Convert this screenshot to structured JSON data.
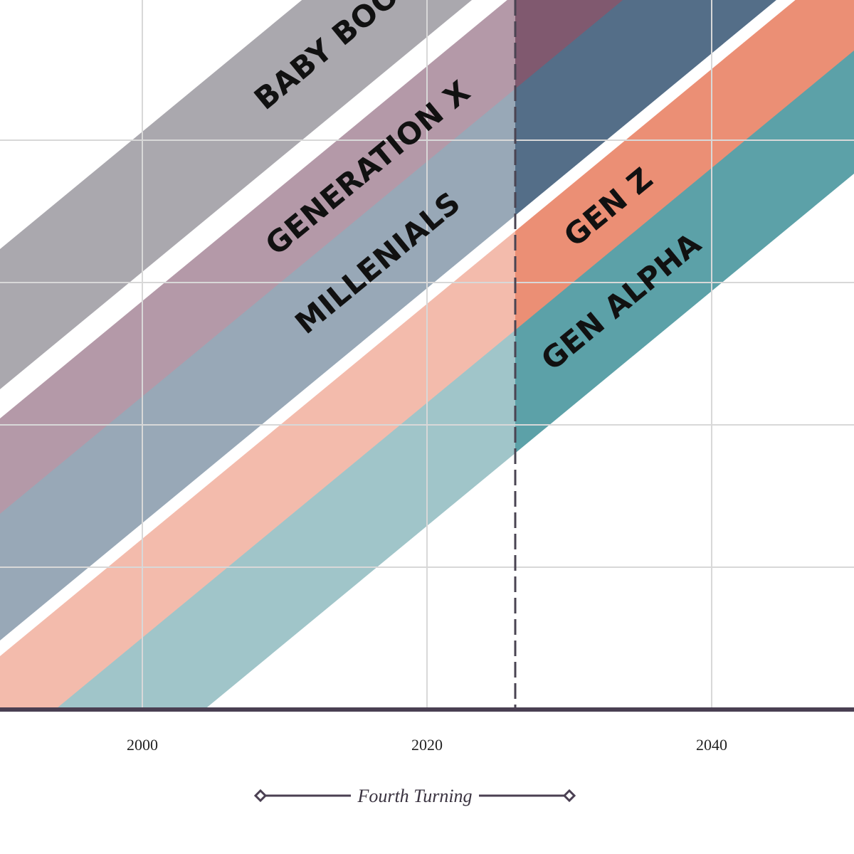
{
  "chart_data": {
    "type": "area",
    "title": "",
    "xlabel": "",
    "ylabel": "",
    "xlim": [
      1990,
      2050
    ],
    "ylim": [
      0,
      100
    ],
    "x_ticks": [
      2000,
      2020,
      2040
    ],
    "x_tick_labels": [
      "2000",
      "2020",
      "2040"
    ],
    "y_grid": [
      20,
      40,
      60,
      80
    ],
    "grid": true,
    "slope_per_year": 1.65,
    "divider_year": 2026.2,
    "series": [
      {
        "name": "BABY BOOMERS",
        "y_at_1990": 45.0,
        "thickness": 19.7,
        "fill_past": "#aaa8ae",
        "fill_future": "#6f6b78"
      },
      {
        "name": "GENERATION X",
        "y_at_1990": 25.3,
        "thickness": 15.6,
        "fill_past": "#b499a8",
        "fill_future": "#80596f"
      },
      {
        "name": "MILLENIALS",
        "y_at_1990": 9.7,
        "thickness": 17.8,
        "fill_past": "#98a8b7",
        "fill_future": "#546e88"
      },
      {
        "name": "GEN Z",
        "y_at_1990": -8.1,
        "thickness": 15.6,
        "fill_past": "#f3bbac",
        "fill_future": "#eb8f75"
      },
      {
        "name": "GEN ALPHA",
        "y_at_1990": -23.7,
        "thickness": 17.3,
        "fill_past": "#a0c5c9",
        "fill_future": "#5ca1a8"
      }
    ],
    "labels": [
      {
        "text": "BABY BOOMERS",
        "year": 2016.0
      },
      {
        "text": "GENERATION X",
        "year": 2016.3
      },
      {
        "text": "MILLENIALS",
        "year": 2017.0
      },
      {
        "text": "GEN Z",
        "year": 2033.2
      },
      {
        "text": "GEN ALPHA",
        "year": 2034.1
      }
    ],
    "annotation": {
      "text": "Fourth Turning",
      "from_year": 2008.3,
      "to_year": 2030.0
    }
  },
  "colors": {
    "axis": "#4a3f52",
    "grid": "#d8d8d8",
    "divider": "#4a4452"
  }
}
